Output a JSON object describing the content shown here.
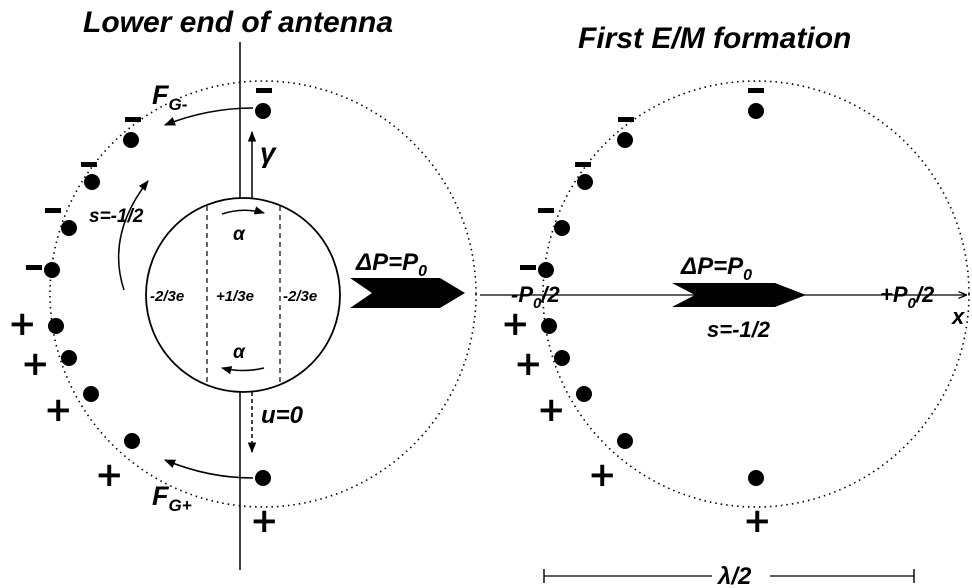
{
  "titles": {
    "left": "Lower end of antenna",
    "right": "First E/M formation"
  },
  "left_diagram": {
    "force_top": {
      "main": "F",
      "sub": "G-"
    },
    "force_bottom": {
      "main": "F",
      "sub": "G+"
    },
    "spin_label": "s=-1/2",
    "gamma_label": "γ",
    "velocity_label": "u=0",
    "alpha_top": "α",
    "alpha_bottom": "α",
    "quark_left": "-2/3e",
    "quark_center": "+1/3e",
    "quark_right": "-2/3e"
  },
  "transfer": {
    "label_main": "ΔP=P",
    "label_sub": "0"
  },
  "right_diagram": {
    "momentum_label_main": "ΔP=P",
    "momentum_label_sub": "0",
    "spin_label": "s=-1/2",
    "left_end": {
      "prefix": "-P",
      "sub": "0",
      "suffix": "/2"
    },
    "right_end": {
      "prefix": "+P",
      "sub": "0",
      "suffix": "/2"
    },
    "axis_label": "x",
    "wavelength_label": "λ/2"
  },
  "signs": {
    "minus": "−",
    "plus": "+"
  }
}
